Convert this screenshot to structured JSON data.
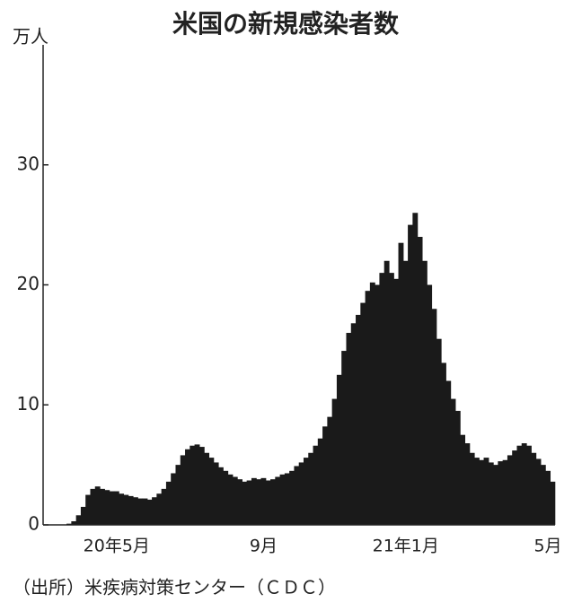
{
  "chart_data": {
    "type": "bar",
    "title": "米国の新規感染者数",
    "y_label": "万人",
    "source": "（出所）米疾病対策センター（ＣＤＣ）",
    "categories": [
      null,
      null,
      null,
      null,
      null,
      null,
      null,
      null,
      null,
      null,
      null,
      null,
      null,
      null,
      null,
      "20年5月",
      null,
      null,
      null,
      null,
      null,
      null,
      null,
      null,
      null,
      null,
      null,
      null,
      null,
      null,
      null,
      null,
      null,
      null,
      null,
      null,
      null,
      null,
      null,
      null,
      null,
      null,
      null,
      null,
      null,
      null,
      "9月",
      null,
      null,
      null,
      null,
      null,
      null,
      null,
      null,
      null,
      null,
      null,
      null,
      null,
      null,
      null,
      null,
      null,
      null,
      null,
      null,
      null,
      null,
      null,
      null,
      null,
      null,
      null,
      null,
      null,
      "21年1月",
      null,
      null,
      null,
      null,
      null,
      null,
      null,
      null,
      null,
      null,
      null,
      null,
      null,
      null,
      null,
      null,
      null,
      null,
      null,
      null,
      null,
      null,
      null,
      null,
      null,
      null,
      null,
      null,
      null,
      "5月",
      null
    ],
    "values": [
      0,
      0,
      0,
      0,
      0,
      0.1,
      0.3,
      0.8,
      1.5,
      2.5,
      3.0,
      3.2,
      3.0,
      2.9,
      2.8,
      2.8,
      2.6,
      2.5,
      2.4,
      2.3,
      2.2,
      2.2,
      2.1,
      2.3,
      2.6,
      3.0,
      3.6,
      4.3,
      5.0,
      5.8,
      6.3,
      6.6,
      6.7,
      6.5,
      6.0,
      5.6,
      5.2,
      4.8,
      4.5,
      4.2,
      4.0,
      3.8,
      3.6,
      3.7,
      3.9,
      3.8,
      3.9,
      3.7,
      3.8,
      4.0,
      4.2,
      4.3,
      4.5,
      4.9,
      5.2,
      5.6,
      6.0,
      6.6,
      7.2,
      8.2,
      9.0,
      10.5,
      12.5,
      14.5,
      16.0,
      16.8,
      17.5,
      18.5,
      19.5,
      20.2,
      20.0,
      21.0,
      22.0,
      21.0,
      20.5,
      23.5,
      22.0,
      25.0,
      26.0,
      24.0,
      22.0,
      20.0,
      18.0,
      15.5,
      13.5,
      12.0,
      10.5,
      9.5,
      7.5,
      6.8,
      6.0,
      5.6,
      5.4,
      5.6,
      5.2,
      5.0,
      5.3,
      5.4,
      5.8,
      6.2,
      6.6,
      6.8,
      6.6,
      6.0,
      5.5,
      5.0,
      4.5,
      3.6
    ],
    "color": "#1a1a1a",
    "ylim": [
      0,
      40
    ],
    "yticks": [
      0,
      10,
      20,
      30
    ]
  }
}
